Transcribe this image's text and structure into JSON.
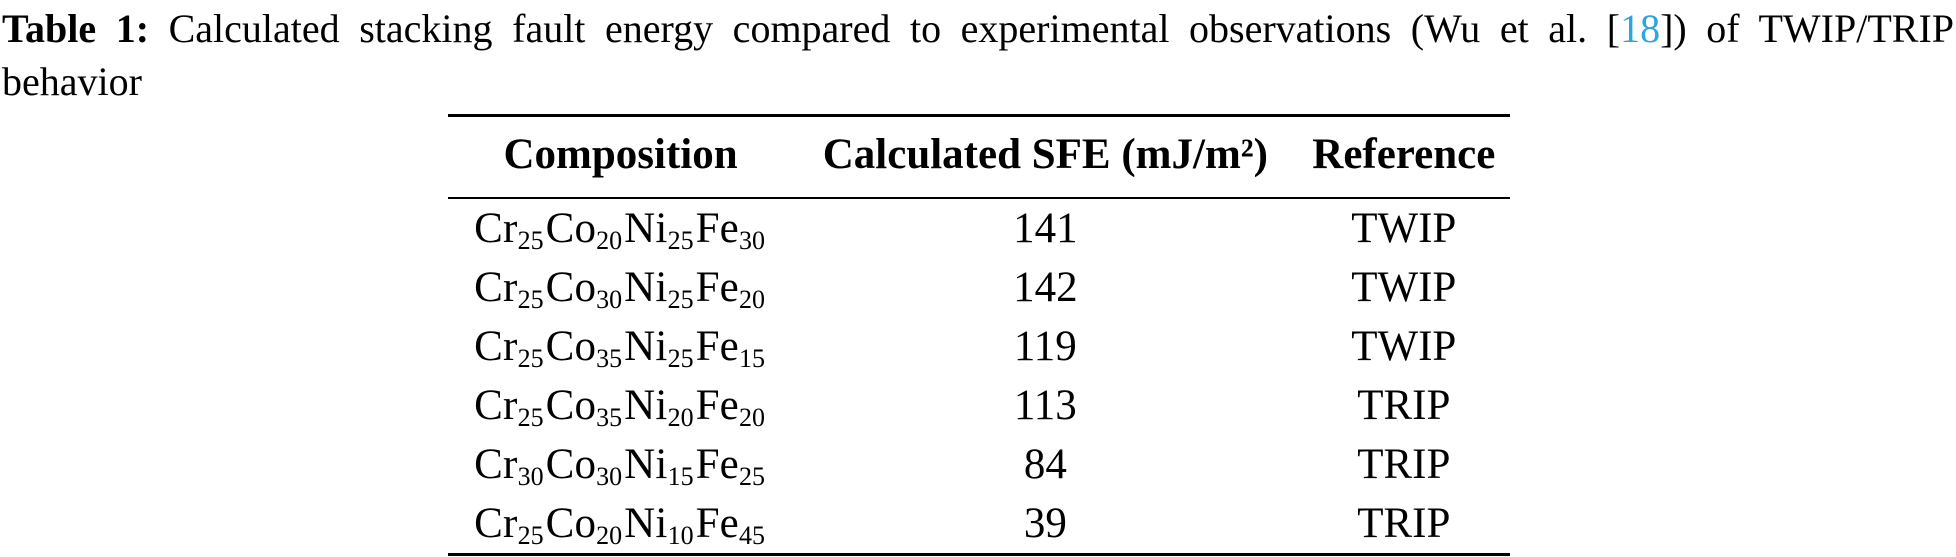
{
  "caption": {
    "label": "Table 1:",
    "text_before_link": "Calculated stacking fault energy compared to experimental observations (Wu et al. [",
    "citation": "18",
    "text_after_link": "]) of TWIP/TRIP",
    "line2": "behavior",
    "citation_color": "#2ea4dc",
    "text_color": "#000000"
  },
  "table": {
    "headers": [
      "Composition",
      "Calculated SFE (mJ/m²)",
      "Reference"
    ],
    "rows": [
      {
        "composition": [
          {
            "el": "Cr",
            "sub": "25"
          },
          {
            "el": "Co",
            "sub": "20"
          },
          {
            "el": "Ni",
            "sub": "25"
          },
          {
            "el": "Fe",
            "sub": "30"
          }
        ],
        "sfe": "141",
        "reference": "TWIP"
      },
      {
        "composition": [
          {
            "el": "Cr",
            "sub": "25"
          },
          {
            "el": "Co",
            "sub": "30"
          },
          {
            "el": "Ni",
            "sub": "25"
          },
          {
            "el": "Fe",
            "sub": "20"
          }
        ],
        "sfe": "142",
        "reference": "TWIP"
      },
      {
        "composition": [
          {
            "el": "Cr",
            "sub": "25"
          },
          {
            "el": "Co",
            "sub": "35"
          },
          {
            "el": "Ni",
            "sub": "25"
          },
          {
            "el": "Fe",
            "sub": "15"
          }
        ],
        "sfe": "119",
        "reference": "TWIP"
      },
      {
        "composition": [
          {
            "el": "Cr",
            "sub": "25"
          },
          {
            "el": "Co",
            "sub": "35"
          },
          {
            "el": "Ni",
            "sub": "20"
          },
          {
            "el": "Fe",
            "sub": "20"
          }
        ],
        "sfe": "113",
        "reference": "TRIP"
      },
      {
        "composition": [
          {
            "el": "Cr",
            "sub": "30"
          },
          {
            "el": "Co",
            "sub": "30"
          },
          {
            "el": "Ni",
            "sub": "15"
          },
          {
            "el": "Fe",
            "sub": "25"
          }
        ],
        "sfe": "84",
        "reference": "TRIP"
      },
      {
        "composition": [
          {
            "el": "Cr",
            "sub": "25"
          },
          {
            "el": "Co",
            "sub": "20"
          },
          {
            "el": "Ni",
            "sub": "10"
          },
          {
            "el": "Fe",
            "sub": "45"
          }
        ],
        "sfe": "39",
        "reference": "TRIP"
      }
    ]
  }
}
